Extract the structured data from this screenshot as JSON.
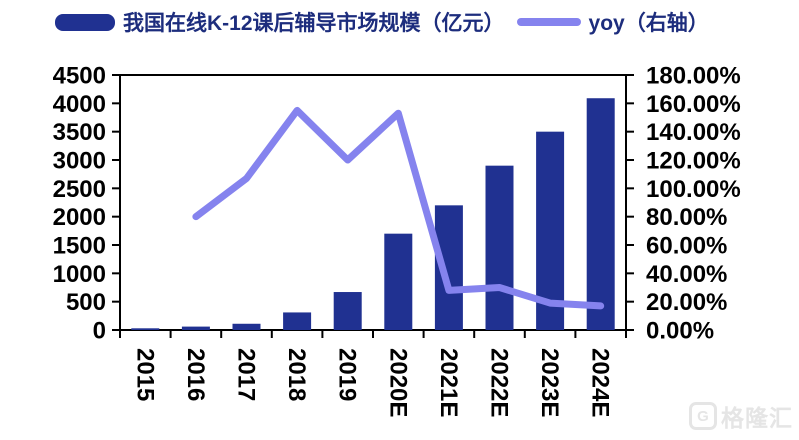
{
  "legend": {
    "market_size_label": "我国在线K-12课后辅导市场规模（亿元）",
    "yoy_label": "yoy（右轴）"
  },
  "watermark": {
    "logo_letter": "G",
    "brand": "格隆汇"
  },
  "colors": {
    "bar": "#203191",
    "line": "#8583EE",
    "legend_text": "#1D2D7D",
    "axis": "#000000",
    "watermark": "#E5E5E5",
    "background": "#FFFFFF"
  },
  "chart_data": {
    "type": "bar",
    "subtype": "combo-bar-line",
    "title": "",
    "categories": [
      "2015",
      "2016",
      "2017",
      "2018",
      "2019",
      "2020E",
      "2021E",
      "2022E",
      "2023E",
      "2024E"
    ],
    "series": [
      {
        "name": "我国在线K-12课后辅导市场规模（亿元）",
        "type": "bar",
        "axis": "left",
        "unit": "亿元",
        "values": [
          30,
          60,
          110,
          310,
          670,
          1700,
          2200,
          2900,
          3500,
          4090
        ]
      },
      {
        "name": "yoy（右轴）",
        "type": "line",
        "axis": "right",
        "unit": "%",
        "values": [
          null,
          80,
          107,
          155,
          120,
          153,
          28,
          30,
          19,
          17
        ]
      }
    ],
    "left_axis": {
      "min": 0,
      "max": 4500,
      "step": 500,
      "tick_labels": [
        "4500",
        "4000",
        "3500",
        "3000",
        "2500",
        "2000",
        "1500",
        "1000",
        "500",
        "0"
      ]
    },
    "right_axis": {
      "min": 0,
      "max": 180,
      "step": 20,
      "tick_labels": [
        "180.00%",
        "160.00%",
        "140.00%",
        "120.00%",
        "100.00%",
        "80.00%",
        "60.00%",
        "40.00%",
        "20.00%",
        "0.00%"
      ]
    },
    "grid": false,
    "legend_position": "top-center",
    "x_tick_label_rotation_deg": 90
  }
}
